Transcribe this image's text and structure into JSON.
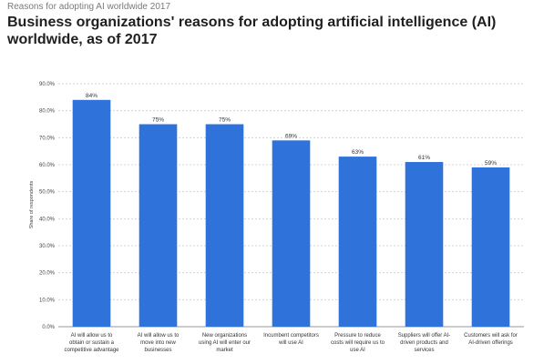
{
  "header": {
    "supertitle": "Reasons for adopting AI worldwide 2017",
    "title": "Business organizations' reasons for adopting artificial intelligence (AI) worldwide, as of 2017"
  },
  "chart_data": {
    "type": "bar",
    "title": "Business organizations' reasons for adopting artificial intelligence (AI) worldwide, as of 2017",
    "xlabel": "",
    "ylabel": "Share of respondents",
    "ylim": [
      0,
      90
    ],
    "yticks": [
      "0.0%",
      "10.0%",
      "20.0%",
      "30.0%",
      "40.0%",
      "50.0%",
      "60.0%",
      "70.0%",
      "80.0%",
      "90.0%"
    ],
    "grid": true,
    "bar_color": "#2f72d9",
    "categories": [
      "AI will allow us to obtain or sustain a competitive advantage",
      "AI will allow us to move into new businesses",
      "New organizations using AI will enter our market",
      "Incumbent competitors will use AI",
      "Pressure to reduce costs will require us to use AI",
      "Suppliers will offer AI-driven products and services",
      "Customers will ask for AI-driven offerings"
    ],
    "category_lines": [
      [
        "AI will allow us to",
        "obtain or sustain a",
        "competitive advantage"
      ],
      [
        "AI will allow us to",
        "move into new",
        "businesses"
      ],
      [
        "New organizations",
        "using AI will enter our",
        "market"
      ],
      [
        "Incumbent competitors",
        "will use AI"
      ],
      [
        "Pressure to reduce",
        "costs will require us to",
        "use AI"
      ],
      [
        "Suppliers will offer AI-",
        "driven products and",
        "services"
      ],
      [
        "Customers will ask for",
        "AI-driven offerings"
      ]
    ],
    "values": [
      84,
      75,
      75,
      69,
      63,
      61,
      59
    ],
    "data_labels": [
      "84%",
      "75%",
      "75%",
      "69%",
      "63%",
      "61%",
      "59%"
    ]
  }
}
